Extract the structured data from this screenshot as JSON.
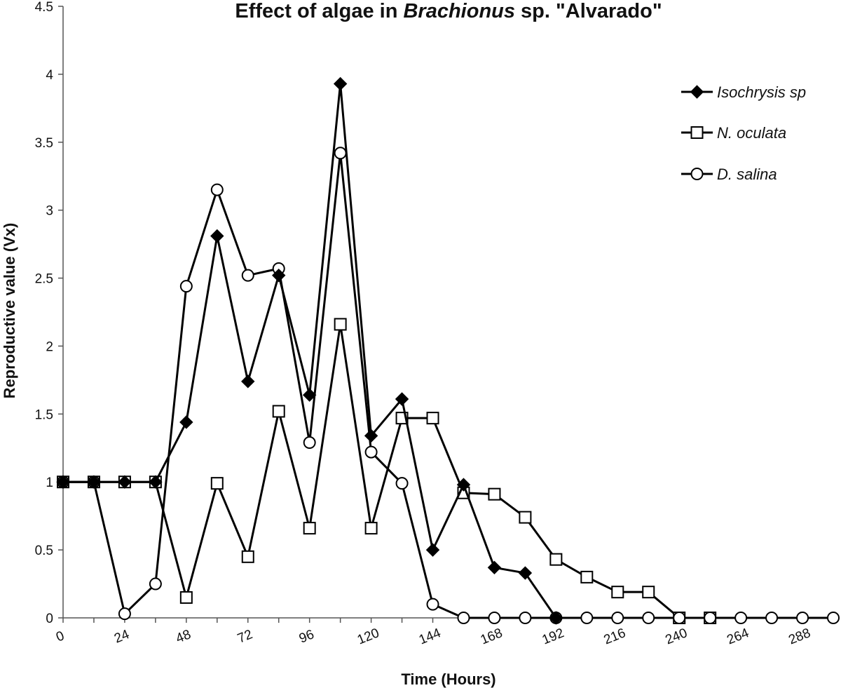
{
  "chart_data": {
    "type": "line",
    "title_prefix": "Effect of algae in ",
    "title_italic": "Brachionus",
    "title_suffix": " sp. \"Alvarado\"",
    "xlabel": "Time (Hours)",
    "ylabel": "Reproductive value (Vx)",
    "xlim": [
      0,
      300
    ],
    "ylim": [
      0,
      4.5
    ],
    "x_ticks": [
      0,
      24,
      48,
      72,
      96,
      120,
      144,
      168,
      192,
      216,
      240,
      264,
      288
    ],
    "y_ticks": [
      0,
      0.5,
      1,
      1.5,
      2,
      2.5,
      3,
      3.5,
      4,
      4.5
    ],
    "y_tick_labels": [
      "0",
      "0.5",
      "1",
      "1.5",
      "2",
      "2.5",
      "3",
      "3.5",
      "4",
      "4.5"
    ],
    "grid": false,
    "legend_position": "top-right",
    "series": [
      {
        "name": "Isochrysis sp",
        "marker": "diamond-filled",
        "color": "#000000",
        "points": [
          [
            0,
            1
          ],
          [
            12,
            1
          ],
          [
            24,
            1
          ],
          [
            36,
            1
          ],
          [
            48,
            1.44
          ],
          [
            60,
            2.81
          ],
          [
            72,
            1.74
          ],
          [
            84,
            2.52
          ],
          [
            96,
            1.64
          ],
          [
            108,
            3.93
          ],
          [
            120,
            1.34
          ],
          [
            132,
            1.61
          ],
          [
            144,
            0.5
          ],
          [
            156,
            0.98
          ],
          [
            168,
            0.37
          ],
          [
            180,
            0.33
          ],
          [
            192,
            0
          ]
        ]
      },
      {
        "name": "N. oculata",
        "marker": "square-open",
        "color": "#000000",
        "points": [
          [
            0,
            1
          ],
          [
            12,
            1
          ],
          [
            24,
            1
          ],
          [
            36,
            1
          ],
          [
            48,
            0.15
          ],
          [
            60,
            0.99
          ],
          [
            72,
            0.45
          ],
          [
            84,
            1.52
          ],
          [
            96,
            0.66
          ],
          [
            108,
            2.16
          ],
          [
            120,
            0.66
          ],
          [
            132,
            1.47
          ],
          [
            144,
            1.47
          ],
          [
            156,
            0.92
          ],
          [
            168,
            0.91
          ],
          [
            180,
            0.74
          ],
          [
            192,
            0.43
          ],
          [
            204,
            0.3
          ],
          [
            216,
            0.19
          ],
          [
            228,
            0.19
          ],
          [
            240,
            0
          ],
          [
            252,
            0
          ]
        ]
      },
      {
        "name": "D. salina",
        "marker": "circle-open",
        "color": "#000000",
        "points": [
          [
            0,
            1
          ],
          [
            12,
            1
          ],
          [
            24,
            0.03
          ],
          [
            36,
            0.25
          ],
          [
            48,
            2.44
          ],
          [
            60,
            3.15
          ],
          [
            72,
            2.52
          ],
          [
            84,
            2.57
          ],
          [
            96,
            1.29
          ],
          [
            108,
            3.42
          ],
          [
            120,
            1.22
          ],
          [
            132,
            0.99
          ],
          [
            144,
            0.1
          ],
          [
            156,
            0
          ],
          [
            168,
            0
          ],
          [
            180,
            0
          ],
          [
            192,
            0
          ],
          [
            204,
            0
          ],
          [
            216,
            0
          ],
          [
            228,
            0
          ],
          [
            240,
            0
          ],
          [
            252,
            0
          ],
          [
            264,
            0
          ],
          [
            276,
            0
          ],
          [
            288,
            0
          ],
          [
            300,
            0
          ]
        ]
      }
    ]
  }
}
